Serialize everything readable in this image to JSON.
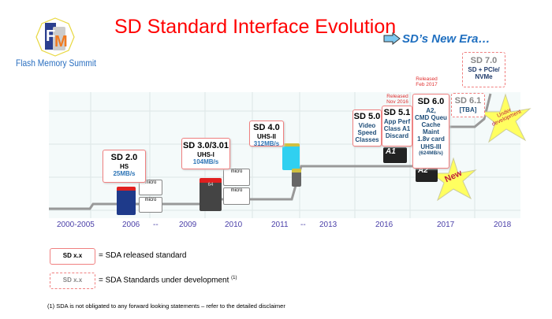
{
  "header": {
    "title": "SD Standard Interface Evolution",
    "logo_text": "Flash Memory Summit",
    "logo_letters": "FMS",
    "era_label": "SD’s New Era…"
  },
  "milestones": [
    {
      "name": "SD 2.0",
      "lines": [
        "HS"
      ],
      "speed": "25MB/s"
    },
    {
      "name": "SD 3.0/3.01",
      "lines": [
        "UHS-I"
      ],
      "speed": "104MB/s"
    },
    {
      "name": "SD 4.0",
      "lines": [
        "UHS-II"
      ],
      "speed": "312MB/s"
    },
    {
      "name": "SD 5.0",
      "lines": [
        "Video",
        "Speed",
        "Classes"
      ]
    },
    {
      "name": "SD 5.1",
      "lines": [
        "App Perf",
        "Class A1",
        "Discard"
      ],
      "released": "Released Nov 2016"
    },
    {
      "name": "SD 6.0",
      "lines": [
        "A2,",
        "CMD Queu",
        "Cache",
        "Maint",
        "1.8v card",
        "UHS-III"
      ],
      "speed": "(624MB/s)",
      "released": "Released Feb 2017"
    },
    {
      "name": "SD 6.1",
      "lines": [
        "[TBA]"
      ]
    },
    {
      "name": "SD 7.0",
      "lines": [
        "SD + PCIe/",
        "NVMe"
      ]
    }
  ],
  "stars": {
    "under_development": "Under development",
    "new": "New"
  },
  "card_labels": {
    "a1": "A1",
    "a2": "A2",
    "micro": "micro",
    "sixty_four": "64"
  },
  "years": [
    "2000-2005",
    "2006",
    "--",
    "2009",
    "2010",
    "2011",
    "--",
    "2013",
    "2016",
    "2017",
    "2018"
  ],
  "legend": [
    {
      "box": "SD x.x",
      "text": "= SDA released standard"
    },
    {
      "box": "SD x.x",
      "text": "= SDA Standards under development",
      "sup": "(1)"
    }
  ],
  "footnote": "(1) SDA is not obligated to any forward looking statements – refer to the detailed disclaimer",
  "colors": {
    "title": "#ff0000",
    "border": "#f08080",
    "year": "#4a3fa8",
    "era": "#1f6fc0"
  }
}
